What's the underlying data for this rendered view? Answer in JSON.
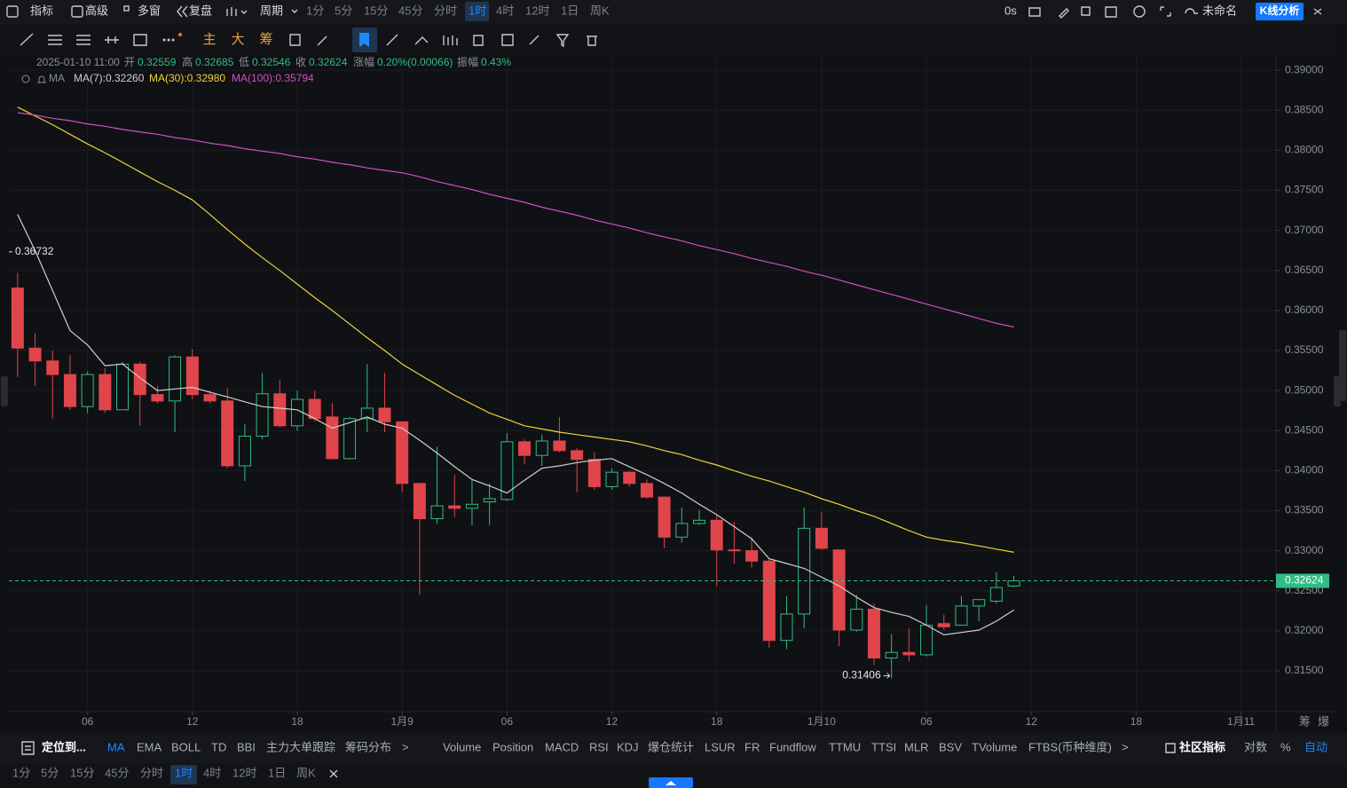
{
  "ui": {
    "toolbar": [
      "指标",
      "高级",
      "多窗",
      "复盘",
      "周期"
    ],
    "timeframes": [
      "1分",
      "5分",
      "15分",
      "45分",
      "分时",
      "1时",
      "4时",
      "12时",
      "1日",
      "周K"
    ],
    "toolbar_right": {
      "countdown": "0s",
      "layout_name": "未命名",
      "analysis": "K线分析"
    },
    "draw_tools": [
      "主",
      "大",
      "筹"
    ],
    "indicator_bar": {
      "locate": "定位到...",
      "main": [
        "MA",
        "EMA",
        "BOLL",
        "TD",
        "BBI",
        "主力大单跟踪",
        "筹码分布"
      ],
      "main_more": ">",
      "sub": [
        "Volume",
        "Position",
        "MACD",
        "RSI",
        "KDJ",
        "爆仓统计",
        "LSUR",
        "FR",
        "Fundflow",
        "TTMU",
        "TTSI",
        "MLR",
        "BSV",
        "TVolume",
        "FTBS(币种维度)"
      ],
      "sub_more": ">",
      "right": [
        "社区指标",
        "对数",
        "%",
        "自动"
      ]
    },
    "timeframe_bar": [
      "1分",
      "5分",
      "15分",
      "45分",
      "分时",
      "1时",
      "4时",
      "12时",
      "1日",
      "周K"
    ],
    "axis_corner": [
      "筹",
      "爆"
    ]
  },
  "chart_data": {
    "type": "candlestick",
    "header": {
      "time": "2025-01-10 11:00",
      "labels": [
        "开",
        "高",
        "低",
        "收",
        "涨幅",
        "振幅"
      ],
      "change": "0.20%(0.00066)",
      "amplitude": "0.43%"
    },
    "legend_title": "MA",
    "x": [
      2,
      3,
      4,
      5,
      6,
      7,
      8,
      9,
      10,
      11,
      12,
      13,
      14,
      15,
      16,
      17,
      18,
      19,
      20,
      21,
      22,
      23,
      24,
      25,
      26,
      27,
      28,
      29,
      30,
      31,
      32,
      33,
      34,
      35,
      36,
      37,
      38,
      39,
      40,
      41,
      42,
      43,
      44,
      45,
      46,
      47,
      48,
      49,
      50,
      51,
      52,
      53,
      54,
      55,
      56,
      57,
      58,
      59
    ],
    "open": [
      0.3628,
      0.3553,
      0.3537,
      0.352,
      0.348,
      0.352,
      0.3476,
      0.3533,
      0.3495,
      0.3487,
      0.3542,
      0.3495,
      0.3487,
      0.3406,
      0.3443,
      0.3496,
      0.3456,
      0.3489,
      0.3467,
      0.3415,
      0.3465,
      0.3478,
      0.3461,
      0.3384,
      0.334,
      0.3356,
      0.3353,
      0.3361,
      0.3364,
      0.3436,
      0.3419,
      0.3437,
      0.3425,
      0.3414,
      0.338,
      0.3398,
      0.3384,
      0.3367,
      0.3317,
      0.3334,
      0.3338,
      0.3301,
      0.33,
      0.3287,
      0.3188,
      0.3221,
      0.3328,
      0.3301,
      0.3201,
      0.3227,
      0.3166,
      0.3173,
      0.317,
      0.3209,
      0.3207,
      0.3231,
      0.3237,
      0.32559
    ],
    "high": [
      0.3647,
      0.3572,
      0.355,
      0.3544,
      0.3524,
      0.3528,
      0.3536,
      0.3536,
      0.3506,
      0.3544,
      0.3552,
      0.35,
      0.3503,
      0.3458,
      0.3522,
      0.3513,
      0.35,
      0.35,
      0.3484,
      0.3467,
      0.3533,
      0.3522,
      0.3461,
      0.3384,
      0.343,
      0.3395,
      0.3389,
      0.3384,
      0.3447,
      0.3439,
      0.3445,
      0.3467,
      0.3428,
      0.3423,
      0.3403,
      0.34,
      0.3389,
      0.3367,
      0.3354,
      0.3351,
      0.3345,
      0.3336,
      0.3317,
      0.329,
      0.3243,
      0.3354,
      0.3348,
      0.3301,
      0.3245,
      0.3234,
      0.3196,
      0.3203,
      0.3232,
      0.322,
      0.3243,
      0.3239,
      0.3273,
      0.32685
    ],
    "low": [
      0.3517,
      0.3506,
      0.3465,
      0.3476,
      0.3472,
      0.3472,
      0.3476,
      0.3456,
      0.3484,
      0.3448,
      0.3489,
      0.3484,
      0.3403,
      0.3387,
      0.3439,
      0.3454,
      0.345,
      0.3461,
      0.3414,
      0.3414,
      0.3448,
      0.3448,
      0.3373,
      0.3245,
      0.3334,
      0.3342,
      0.3332,
      0.3332,
      0.3362,
      0.3408,
      0.3406,
      0.3423,
      0.3373,
      0.3376,
      0.3376,
      0.338,
      0.3365,
      0.3303,
      0.331,
      0.3332,
      0.3256,
      0.3284,
      0.3279,
      0.3179,
      0.3177,
      0.3203,
      0.3301,
      0.3181,
      0.3199,
      0.3157,
      0.31406,
      0.3162,
      0.3168,
      0.3201,
      0.3207,
      0.3212,
      0.3234,
      0.32546
    ],
    "close": [
      0.3553,
      0.3537,
      0.352,
      0.348,
      0.352,
      0.3476,
      0.3533,
      0.3495,
      0.3487,
      0.3542,
      0.3495,
      0.3487,
      0.3406,
      0.3443,
      0.3496,
      0.3456,
      0.3489,
      0.3465,
      0.3415,
      0.3465,
      0.3478,
      0.3461,
      0.3384,
      0.334,
      0.3356,
      0.3353,
      0.3358,
      0.3365,
      0.3436,
      0.3419,
      0.3437,
      0.3425,
      0.3414,
      0.338,
      0.3398,
      0.3384,
      0.3367,
      0.3317,
      0.3334,
      0.3338,
      0.3301,
      0.33,
      0.3287,
      0.3188,
      0.3221,
      0.3328,
      0.3303,
      0.3201,
      0.3227,
      0.3166,
      0.3173,
      0.317,
      0.3207,
      0.3205,
      0.3231,
      0.3239,
      0.3254,
      0.32624
    ],
    "up_color": "#2ebd85",
    "down_color": "#e0454c",
    "series": [
      {
        "name": "MA(7):0.32260",
        "color": "#d0d0d0",
        "values": [
          0.372,
          0.3675,
          0.3625,
          0.3575,
          0.3557,
          0.3531,
          0.3533,
          0.3516,
          0.35,
          0.3502,
          0.3504,
          0.3498,
          0.3492,
          0.3486,
          0.348,
          0.3478,
          0.3476,
          0.3465,
          0.3453,
          0.346,
          0.3467,
          0.3458,
          0.3453,
          0.3438,
          0.3422,
          0.3405,
          0.3389,
          0.3381,
          0.3372,
          0.3388,
          0.3403,
          0.3406,
          0.341,
          0.3413,
          0.3415,
          0.3405,
          0.3395,
          0.3384,
          0.3372,
          0.3358,
          0.3345,
          0.333,
          0.3315,
          0.329,
          0.3284,
          0.3278,
          0.3267,
          0.3256,
          0.3242,
          0.3229,
          0.3223,
          0.3218,
          0.3207,
          0.3195,
          0.3198,
          0.3201,
          0.3212,
          0.3226
        ]
      },
      {
        "name": "MA(30):0.32980",
        "color": "#f0d23a",
        "values": [
          0.3854,
          0.3843,
          0.3832,
          0.382,
          0.3808,
          0.3797,
          0.3785,
          0.3773,
          0.3761,
          0.375,
          0.3738,
          0.372,
          0.3701,
          0.3683,
          0.3666,
          0.365,
          0.3633,
          0.3616,
          0.36,
          0.3583,
          0.3566,
          0.355,
          0.3533,
          0.352,
          0.3507,
          0.3494,
          0.3483,
          0.3472,
          0.3464,
          0.3456,
          0.3452,
          0.3448,
          0.3445,
          0.3442,
          0.3439,
          0.3436,
          0.3431,
          0.3425,
          0.342,
          0.3413,
          0.3407,
          0.34,
          0.3393,
          0.3387,
          0.338,
          0.3373,
          0.3365,
          0.3358,
          0.335,
          0.3343,
          0.3334,
          0.3325,
          0.3317,
          0.3313,
          0.331,
          0.3306,
          0.3302,
          0.3298
        ]
      },
      {
        "name": "MA(100):0.35794",
        "color": "#d04fc4",
        "values": [
          0.3847,
          0.3844,
          0.384,
          0.3837,
          0.3833,
          0.383,
          0.3826,
          0.3823,
          0.382,
          0.3816,
          0.3813,
          0.3809,
          0.3806,
          0.3802,
          0.3799,
          0.3796,
          0.3792,
          0.3789,
          0.3785,
          0.3782,
          0.3778,
          0.3775,
          0.3772,
          0.3767,
          0.3761,
          0.3756,
          0.3751,
          0.3745,
          0.374,
          0.3735,
          0.3729,
          0.3724,
          0.3719,
          0.3713,
          0.3708,
          0.3703,
          0.3697,
          0.3692,
          0.3687,
          0.3681,
          0.3676,
          0.3671,
          0.3665,
          0.366,
          0.3655,
          0.3649,
          0.3644,
          0.3638,
          0.3632,
          0.3626,
          0.362,
          0.3614,
          0.3608,
          0.3602,
          0.3596,
          0.359,
          0.3584,
          0.35794
        ]
      }
    ],
    "max_marker": 0.36732,
    "xlim": [
      1.5,
      74
    ],
    "xticks": [
      {
        "value": 6,
        "label": "06"
      },
      12,
      18,
      {
        "value": 24,
        "label": "1月9"
      },
      {
        "value": 30,
        "label": "06"
      },
      {
        "value": 36,
        "label": "12"
      },
      {
        "value": 42,
        "label": "18"
      },
      {
        "value": 48,
        "label": "1月10"
      },
      {
        "value": 54,
        "label": "06"
      },
      {
        "value": 60,
        "label": "12"
      },
      {
        "value": 66,
        "label": "18"
      },
      {
        "value": 72,
        "label": "1月11"
      }
    ],
    "ylim": [
      0.3099,
      0.3919
    ],
    "yticks": [
      {
        "value": 0.39,
        "label": "0.39000"
      },
      {
        "value": 0.385,
        "label": "0.38500"
      },
      {
        "value": 0.38,
        "label": "0.38000"
      },
      {
        "value": 0.375,
        "label": "0.37500"
      },
      {
        "value": 0.37,
        "label": "0.37000"
      },
      {
        "value": 0.365,
        "label": "0.36500"
      },
      {
        "value": 0.36,
        "label": "0.36000"
      },
      {
        "value": 0.355,
        "label": "0.35500"
      },
      {
        "value": 0.35,
        "label": "0.35000"
      },
      {
        "value": 0.345,
        "label": "0.34500"
      },
      {
        "value": 0.34,
        "label": "0.34000"
      },
      {
        "value": 0.335,
        "label": "0.33500"
      },
      {
        "value": 0.33,
        "label": "0.33000"
      },
      {
        "value": 0.325,
        "label": "0.32500"
      },
      {
        "value": 0.32,
        "label": "0.32000"
      },
      {
        "value": 0.315,
        "label": "0.31500"
      }
    ],
    "grid": true
  }
}
